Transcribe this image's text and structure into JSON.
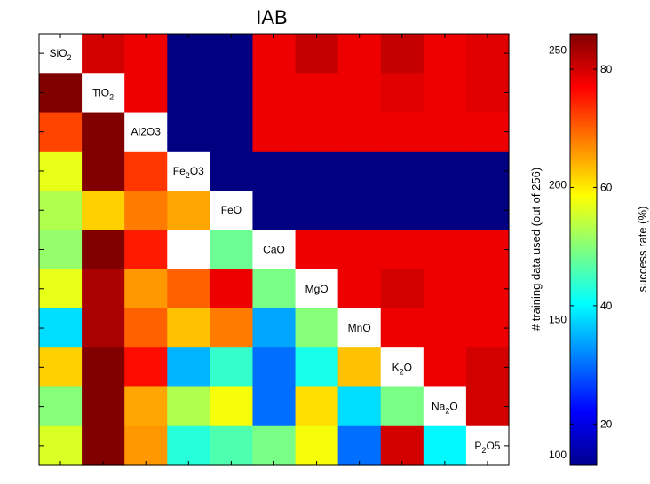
{
  "chart_data": {
    "type": "heatmap",
    "title": "IAB",
    "labels": [
      "SiO2",
      "TiO2",
      "Al2O3",
      "Fe2O3",
      "FeO",
      "CaO",
      "MgO",
      "MnO",
      "K2O",
      "Na2O",
      "P2O5"
    ],
    "label_parts": [
      [
        "SiO",
        "2",
        ""
      ],
      [
        "TiO",
        "2",
        ""
      ],
      [
        "Al2O3",
        "",
        ""
      ],
      [
        "Fe",
        "2",
        "O3"
      ],
      [
        "FeO",
        "",
        ""
      ],
      [
        "CaO",
        "",
        ""
      ],
      [
        "MgO",
        "",
        ""
      ],
      [
        "MnO",
        "",
        ""
      ],
      [
        "K",
        "2",
        "O"
      ],
      [
        "Na",
        "2",
        "O"
      ],
      [
        "P",
        "2",
        "O5"
      ]
    ],
    "diagonal": "blank",
    "matrix": [
      [
        null,
        80,
        78,
        5,
        2,
        78,
        81,
        78,
        81,
        78,
        79
      ],
      [
        87,
        null,
        78,
        5,
        2,
        78,
        78,
        78,
        79,
        78,
        79
      ],
      [
        72,
        86,
        null,
        5,
        2,
        78,
        78,
        78,
        78,
        78,
        78
      ],
      [
        57,
        91,
        73,
        null,
        2,
        7,
        7,
        6,
        7,
        7,
        7
      ],
      [
        53,
        62,
        68,
        65,
        null,
        3,
        3,
        2,
        3,
        3,
        3
      ],
      [
        51,
        90,
        75,
        null,
        48,
        null,
        78,
        78,
        78,
        78,
        78
      ],
      [
        57,
        83,
        66,
        70,
        78,
        49,
        null,
        78,
        80,
        78,
        78
      ],
      [
        38,
        83,
        70,
        63,
        68,
        34,
        50,
        null,
        78,
        78,
        78
      ],
      [
        62,
        99,
        76,
        35,
        44,
        30,
        42,
        63,
        null,
        78,
        80
      ],
      [
        50,
        89,
        65,
        53,
        58,
        30,
        61,
        38,
        49,
        null,
        80
      ],
      [
        56,
        92,
        66,
        43,
        46,
        49,
        58,
        30,
        80,
        40,
        null
      ]
    ],
    "x_tick_labels": [],
    "y_tick_labels": [],
    "colorbar": {
      "label": "success rate (%)",
      "range": [
        13,
        86
      ],
      "ticks": [
        20,
        40,
        60,
        80
      ]
    },
    "secondary_axis": {
      "label": "# training data used (out of 256)",
      "range": [
        96,
        256
      ],
      "ticks": [
        100,
        150,
        200,
        250
      ]
    }
  }
}
